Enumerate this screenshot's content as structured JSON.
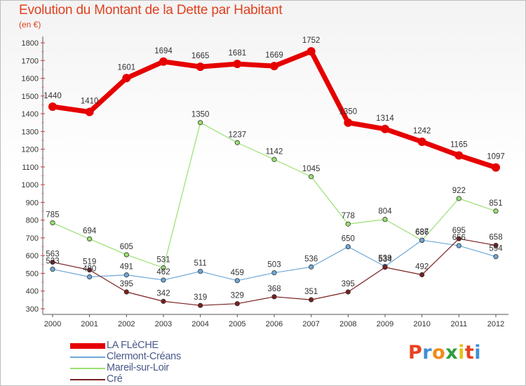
{
  "title": "Evolution du Montant de la Dette par Habitant",
  "subtitle": "(en €)",
  "logo": {
    "text": "Proxiti",
    "colors": [
      "#e8411e",
      "#3d8fd6",
      "#f08a1c",
      "#2e9e3e",
      "#e5c21a",
      "#e8411e",
      "#3d8fd6"
    ]
  },
  "chart_data": {
    "type": "line",
    "title": "Evolution du Montant de la Dette par Habitant",
    "subtitle": "(en €)",
    "xlabel": "",
    "ylabel": "",
    "x": [
      "2000",
      "2001",
      "2002",
      "2003",
      "2004",
      "2005",
      "2006",
      "2007",
      "2008",
      "2009",
      "2010",
      "2011",
      "2012"
    ],
    "ylim": [
      300,
      1800
    ],
    "yticks": [
      300,
      400,
      500,
      600,
      700,
      800,
      900,
      1000,
      1100,
      1200,
      1300,
      1400,
      1500,
      1600,
      1700,
      1800
    ],
    "grid": false,
    "legend_position": "bottom-left",
    "series": [
      {
        "name": "LA FLèCHE",
        "color": "#e60000",
        "line_width": 7,
        "marker": 6,
        "values": [
          1440,
          1410,
          1601,
          1694,
          1665,
          1681,
          1669,
          1752,
          1350,
          1314,
          1242,
          1165,
          1097
        ]
      },
      {
        "name": "Clermont-Créans",
        "color": "#6ea8d8",
        "line_width": 1.2,
        "marker": 3.2,
        "values": [
          523,
          480,
          491,
          462,
          511,
          459,
          503,
          536,
          650,
          539,
          687,
          656,
          594
        ]
      },
      {
        "name": "Mareil-sur-Loir",
        "color": "#99e070",
        "line_width": 1.2,
        "marker": 3.2,
        "values": [
          785,
          694,
          605,
          531,
          1350,
          1237,
          1142,
          1045,
          778,
          804,
          686,
          922,
          851
        ]
      },
      {
        "name": "Cré",
        "color": "#7a1f1f",
        "line_width": 1.2,
        "marker": 3.2,
        "values": [
          563,
          519,
          395,
          342,
          319,
          329,
          368,
          351,
          395,
          534,
          492,
          695,
          658
        ]
      }
    ]
  }
}
